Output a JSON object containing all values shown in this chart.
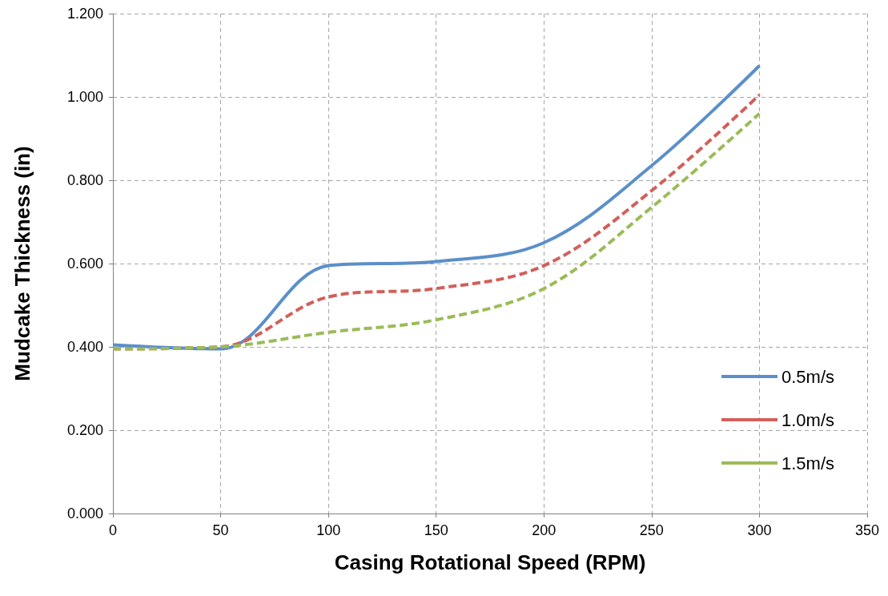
{
  "chart_data": {
    "type": "line",
    "xlabel": "Casing Rotational Speed (RPM)",
    "ylabel": "Mudcake Thickness (in)",
    "x": [
      0,
      50,
      100,
      150,
      200,
      250,
      300
    ],
    "series": [
      {
        "name": "0.5m/s",
        "color": "#5b8fc9",
        "line_style": "solid",
        "values": [
          0.405,
          0.395,
          0.595,
          0.605,
          0.65,
          0.835,
          1.075
        ]
      },
      {
        "name": "1.0m/s",
        "color": "#d25f5a",
        "line_style": "dashed",
        "values": [
          0.395,
          0.4,
          0.52,
          0.54,
          0.595,
          0.775,
          1.005
        ]
      },
      {
        "name": "1.5m/s",
        "color": "#9bbb59",
        "line_style": "dashed",
        "values": [
          0.395,
          0.4,
          0.435,
          0.465,
          0.54,
          0.735,
          0.96
        ]
      }
    ],
    "xlim": [
      0,
      350
    ],
    "xticks": [
      0,
      50,
      100,
      150,
      200,
      250,
      300,
      350
    ],
    "ylim": [
      0,
      1.2
    ],
    "yticks": [
      {
        "value": 0,
        "label": "0.000"
      },
      {
        "value": 0.2,
        "label": "0.200"
      },
      {
        "value": 0.4,
        "label": "0.400"
      },
      {
        "value": 0.6,
        "label": "0.600"
      },
      {
        "value": 0.8,
        "label": "0.800"
      },
      {
        "value": 1.0,
        "label": "1.000"
      },
      {
        "value": 1.2,
        "label": "1.200"
      }
    ],
    "grid": true,
    "legend": "bottom right",
    "marker": "none"
  }
}
